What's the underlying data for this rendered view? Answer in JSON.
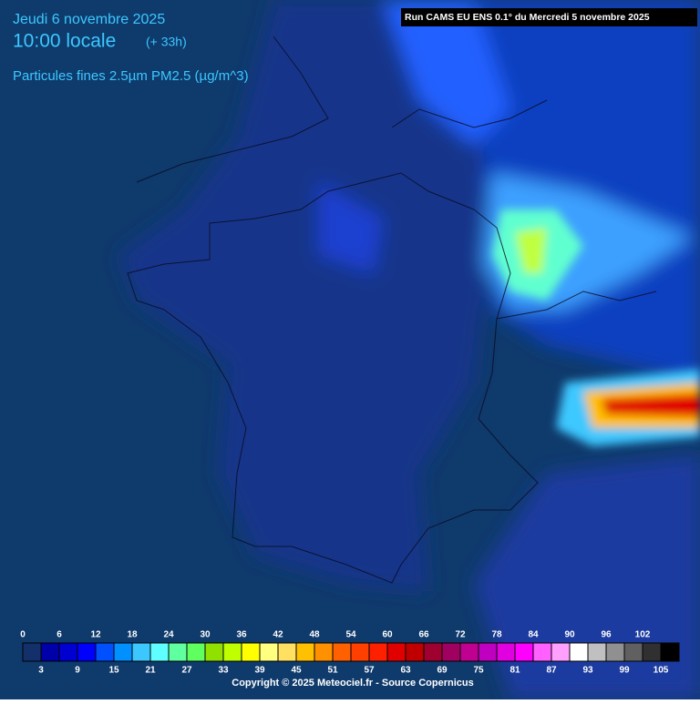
{
  "header": {
    "date": "Jeudi 6 novembre 2025",
    "time": "10:00 locale",
    "lead": "(+ 33h)",
    "parameter": "Particules fines 2.5µm PM2.5 (µg/m^3)",
    "run": "Run CAMS EU ENS 0.1° du Mercredi 5 novembre 2025"
  },
  "legend": {
    "labels_top": [
      0,
      6,
      12,
      18,
      24,
      30,
      36,
      42,
      48,
      54,
      60,
      66,
      72,
      78,
      84,
      90,
      96,
      102
    ],
    "labels_bottom": [
      3,
      9,
      15,
      21,
      27,
      33,
      39,
      45,
      51,
      57,
      63,
      69,
      75,
      81,
      87,
      93,
      99,
      105
    ],
    "colors": [
      "#14306a",
      "#0000a8",
      "#0000d0",
      "#0000ff",
      "#0050ff",
      "#0090ff",
      "#3cc8ff",
      "#60ffff",
      "#60ffa0",
      "#60ff60",
      "#90e000",
      "#c0ff00",
      "#ffff00",
      "#ffff80",
      "#ffe060",
      "#ffc000",
      "#ff9000",
      "#ff6000",
      "#ff4000",
      "#ff2000",
      "#e00000",
      "#c00000",
      "#a00030",
      "#a00060",
      "#c00090",
      "#c000c0",
      "#e000e0",
      "#ff00ff",
      "#ff60ff",
      "#ffa0ff",
      "#ffffff",
      "#c0c0c0",
      "#909090",
      "#606060",
      "#303030",
      "#000000"
    ]
  },
  "footer": {
    "copyright": "Copyright © 2025 Meteociel.fr - Source Copernicus"
  }
}
